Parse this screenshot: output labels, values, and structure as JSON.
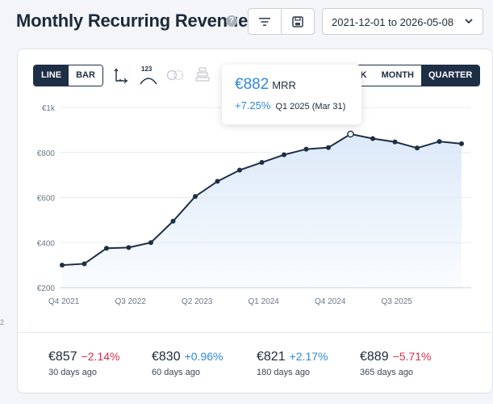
{
  "header": {
    "title": "Monthly Recurring Revenue",
    "help_glyph": "?",
    "date_range": "2021-12-01 to 2026-05-08"
  },
  "toolbar": {
    "chart_types": [
      {
        "label": "LINE",
        "active": true
      },
      {
        "label": "BAR",
        "active": false
      }
    ],
    "periods": [
      {
        "label": "EEK",
        "active": false
      },
      {
        "label": "MONTH",
        "active": false
      },
      {
        "label": "QUARTER",
        "active": true
      }
    ],
    "labels_tool_text": "123"
  },
  "tooltip": {
    "value": "€882",
    "unit": "MRR",
    "change": "+7.25%",
    "period": "Q1 2025 (Mar 31)"
  },
  "chart_data": {
    "type": "area",
    "yticks": [
      "€1k",
      "€800",
      "€600",
      "€400",
      "€200"
    ],
    "ylim": [
      200,
      1000
    ],
    "xtick_labels": [
      "Q4 2021",
      "Q3 2022",
      "Q2 2023",
      "Q1 2024",
      "Q4 2024",
      "Q3 2025"
    ],
    "x": [
      "Q4 2021",
      "Q1 2022",
      "Q2 2022",
      "Q3 2022",
      "Q4 2022",
      "Q1 2023",
      "Q2 2023",
      "Q3 2023",
      "Q4 2023",
      "Q1 2024",
      "Q2 2024",
      "Q3 2024",
      "Q4 2024",
      "Q1 2025",
      "Q2 2025",
      "Q3 2025",
      "Q4 2025",
      "Q1 2026",
      "Q2 2026"
    ],
    "values": [
      300,
      306,
      375,
      378,
      400,
      495,
      605,
      672,
      722,
      756,
      790,
      815,
      822,
      882,
      862,
      847,
      820,
      849,
      839
    ],
    "highlight_index": 13,
    "line_color": "#1e2e45",
    "fill_color": "#dce9f9",
    "grid": "horizontal"
  },
  "summary": [
    {
      "value": "€857",
      "change": "−2.14%",
      "trend": "neg",
      "label": "30 days ago"
    },
    {
      "value": "€830",
      "change": "+0.96%",
      "trend": "pos",
      "label": "60 days ago"
    },
    {
      "value": "€821",
      "change": "+2.17%",
      "trend": "pos",
      "label": "180 days ago"
    },
    {
      "value": "€889",
      "change": "−5.71%",
      "trend": "neg",
      "label": "365 days ago"
    }
  ],
  "edge_mark": "2"
}
